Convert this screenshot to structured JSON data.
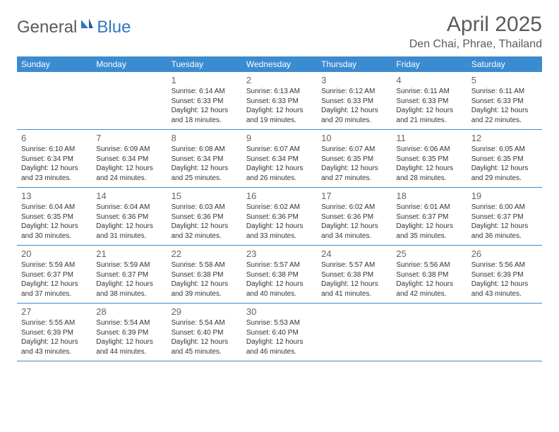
{
  "logo": {
    "general": "General",
    "blue": "Blue"
  },
  "title": "April 2025",
  "location": "Den Chai, Phrae, Thailand",
  "colors": {
    "header_bg": "#3b8bd1",
    "header_text": "#ffffff",
    "border": "#3b8bd1",
    "text": "#333333",
    "muted": "#666666",
    "logo_gray": "#5a5a5a",
    "logo_blue": "#2f78c2",
    "background": "#ffffff"
  },
  "weekdays": [
    "Sunday",
    "Monday",
    "Tuesday",
    "Wednesday",
    "Thursday",
    "Friday",
    "Saturday"
  ],
  "weeks": [
    [
      null,
      null,
      {
        "d": "1",
        "sr": "6:14 AM",
        "ss": "6:33 PM",
        "dl": "12 hours and 18 minutes."
      },
      {
        "d": "2",
        "sr": "6:13 AM",
        "ss": "6:33 PM",
        "dl": "12 hours and 19 minutes."
      },
      {
        "d": "3",
        "sr": "6:12 AM",
        "ss": "6:33 PM",
        "dl": "12 hours and 20 minutes."
      },
      {
        "d": "4",
        "sr": "6:11 AM",
        "ss": "6:33 PM",
        "dl": "12 hours and 21 minutes."
      },
      {
        "d": "5",
        "sr": "6:11 AM",
        "ss": "6:33 PM",
        "dl": "12 hours and 22 minutes."
      }
    ],
    [
      {
        "d": "6",
        "sr": "6:10 AM",
        "ss": "6:34 PM",
        "dl": "12 hours and 23 minutes."
      },
      {
        "d": "7",
        "sr": "6:09 AM",
        "ss": "6:34 PM",
        "dl": "12 hours and 24 minutes."
      },
      {
        "d": "8",
        "sr": "6:08 AM",
        "ss": "6:34 PM",
        "dl": "12 hours and 25 minutes."
      },
      {
        "d": "9",
        "sr": "6:07 AM",
        "ss": "6:34 PM",
        "dl": "12 hours and 26 minutes."
      },
      {
        "d": "10",
        "sr": "6:07 AM",
        "ss": "6:35 PM",
        "dl": "12 hours and 27 minutes."
      },
      {
        "d": "11",
        "sr": "6:06 AM",
        "ss": "6:35 PM",
        "dl": "12 hours and 28 minutes."
      },
      {
        "d": "12",
        "sr": "6:05 AM",
        "ss": "6:35 PM",
        "dl": "12 hours and 29 minutes."
      }
    ],
    [
      {
        "d": "13",
        "sr": "6:04 AM",
        "ss": "6:35 PM",
        "dl": "12 hours and 30 minutes."
      },
      {
        "d": "14",
        "sr": "6:04 AM",
        "ss": "6:36 PM",
        "dl": "12 hours and 31 minutes."
      },
      {
        "d": "15",
        "sr": "6:03 AM",
        "ss": "6:36 PM",
        "dl": "12 hours and 32 minutes."
      },
      {
        "d": "16",
        "sr": "6:02 AM",
        "ss": "6:36 PM",
        "dl": "12 hours and 33 minutes."
      },
      {
        "d": "17",
        "sr": "6:02 AM",
        "ss": "6:36 PM",
        "dl": "12 hours and 34 minutes."
      },
      {
        "d": "18",
        "sr": "6:01 AM",
        "ss": "6:37 PM",
        "dl": "12 hours and 35 minutes."
      },
      {
        "d": "19",
        "sr": "6:00 AM",
        "ss": "6:37 PM",
        "dl": "12 hours and 36 minutes."
      }
    ],
    [
      {
        "d": "20",
        "sr": "5:59 AM",
        "ss": "6:37 PM",
        "dl": "12 hours and 37 minutes."
      },
      {
        "d": "21",
        "sr": "5:59 AM",
        "ss": "6:37 PM",
        "dl": "12 hours and 38 minutes."
      },
      {
        "d": "22",
        "sr": "5:58 AM",
        "ss": "6:38 PM",
        "dl": "12 hours and 39 minutes."
      },
      {
        "d": "23",
        "sr": "5:57 AM",
        "ss": "6:38 PM",
        "dl": "12 hours and 40 minutes."
      },
      {
        "d": "24",
        "sr": "5:57 AM",
        "ss": "6:38 PM",
        "dl": "12 hours and 41 minutes."
      },
      {
        "d": "25",
        "sr": "5:56 AM",
        "ss": "6:38 PM",
        "dl": "12 hours and 42 minutes."
      },
      {
        "d": "26",
        "sr": "5:56 AM",
        "ss": "6:39 PM",
        "dl": "12 hours and 43 minutes."
      }
    ],
    [
      {
        "d": "27",
        "sr": "5:55 AM",
        "ss": "6:39 PM",
        "dl": "12 hours and 43 minutes."
      },
      {
        "d": "28",
        "sr": "5:54 AM",
        "ss": "6:39 PM",
        "dl": "12 hours and 44 minutes."
      },
      {
        "d": "29",
        "sr": "5:54 AM",
        "ss": "6:40 PM",
        "dl": "12 hours and 45 minutes."
      },
      {
        "d": "30",
        "sr": "5:53 AM",
        "ss": "6:40 PM",
        "dl": "12 hours and 46 minutes."
      },
      null,
      null,
      null
    ]
  ],
  "labels": {
    "sunrise": "Sunrise:",
    "sunset": "Sunset:",
    "daylight": "Daylight:"
  }
}
